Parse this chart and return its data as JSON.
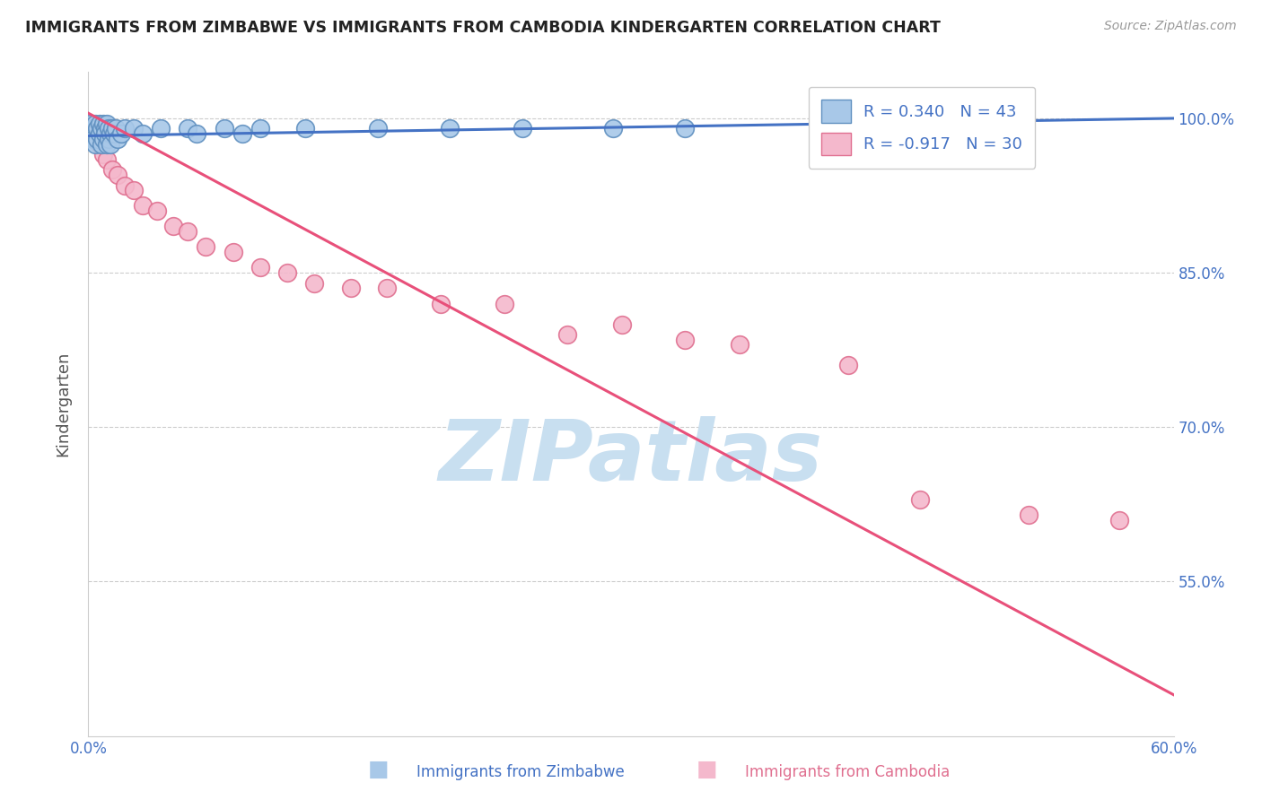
{
  "title": "IMMIGRANTS FROM ZIMBABWE VS IMMIGRANTS FROM CAMBODIA KINDERGARTEN CORRELATION CHART",
  "source_text": "Source: ZipAtlas.com",
  "ylabel": "Kindergarten",
  "x_min": 0.0,
  "x_max": 0.6,
  "y_min": 0.4,
  "y_max": 1.045,
  "x_ticks": [
    0.0,
    0.1,
    0.2,
    0.3,
    0.4,
    0.5,
    0.6
  ],
  "x_tick_labels": [
    "0.0%",
    "",
    "",
    "",
    "",
    "",
    "60.0%"
  ],
  "y_ticks": [
    0.55,
    0.7,
    0.85,
    1.0
  ],
  "y_tick_labels": [
    "55.0%",
    "70.0%",
    "85.0%",
    "100.0%"
  ],
  "grid_color": "#cccccc",
  "watermark": "ZIPatlas",
  "watermark_color": "#c8dff0",
  "bg_color": "#ffffff",
  "zimbabwe_color": "#a8c8e8",
  "zimbabwe_edge": "#6090c0",
  "cambodia_color": "#f4b8cc",
  "cambodia_edge": "#e07090",
  "zimbabwe_line_color": "#4472c4",
  "cambodia_line_color": "#e8507a",
  "R_zimbabwe": 0.34,
  "N_zimbabwe": 43,
  "R_cambodia": -0.917,
  "N_cambodia": 30,
  "legend_label_zimbabwe": "Immigrants from Zimbabwe",
  "legend_label_cambodia": "Immigrants from Cambodia",
  "zimbabwe_x": [
    0.001,
    0.002,
    0.003,
    0.003,
    0.004,
    0.004,
    0.005,
    0.005,
    0.006,
    0.006,
    0.007,
    0.007,
    0.008,
    0.008,
    0.009,
    0.009,
    0.01,
    0.01,
    0.011,
    0.011,
    0.012,
    0.012,
    0.013,
    0.014,
    0.015,
    0.016,
    0.018,
    0.02,
    0.025,
    0.03,
    0.04,
    0.055,
    0.06,
    0.075,
    0.085,
    0.095,
    0.12,
    0.16,
    0.2,
    0.24,
    0.29,
    0.33,
    0.48
  ],
  "zimbabwe_y": [
    0.995,
    0.985,
    0.99,
    0.98,
    0.995,
    0.975,
    0.99,
    0.98,
    0.995,
    0.985,
    0.99,
    0.975,
    0.995,
    0.98,
    0.99,
    0.985,
    0.995,
    0.975,
    0.99,
    0.98,
    0.985,
    0.975,
    0.99,
    0.985,
    0.99,
    0.98,
    0.985,
    0.99,
    0.99,
    0.985,
    0.99,
    0.99,
    0.985,
    0.99,
    0.985,
    0.99,
    0.99,
    0.99,
    0.99,
    0.99,
    0.99,
    0.99,
    0.995
  ],
  "cambodia_x": [
    0.002,
    0.004,
    0.006,
    0.008,
    0.01,
    0.013,
    0.016,
    0.02,
    0.025,
    0.03,
    0.038,
    0.047,
    0.055,
    0.065,
    0.08,
    0.095,
    0.11,
    0.125,
    0.145,
    0.165,
    0.195,
    0.23,
    0.265,
    0.295,
    0.33,
    0.36,
    0.42,
    0.46,
    0.52,
    0.57
  ],
  "cambodia_y": [
    0.99,
    0.985,
    0.975,
    0.965,
    0.96,
    0.95,
    0.945,
    0.935,
    0.93,
    0.915,
    0.91,
    0.895,
    0.89,
    0.875,
    0.87,
    0.855,
    0.85,
    0.84,
    0.835,
    0.835,
    0.82,
    0.82,
    0.79,
    0.8,
    0.785,
    0.78,
    0.76,
    0.63,
    0.615,
    0.61
  ],
  "cam_line_x0": 0.0,
  "cam_line_y0": 1.005,
  "cam_line_x1": 0.6,
  "cam_line_y1": 0.44,
  "zim_line_x0": 0.0,
  "zim_line_y0": 0.983,
  "zim_line_x1": 0.6,
  "zim_line_y1": 1.0
}
